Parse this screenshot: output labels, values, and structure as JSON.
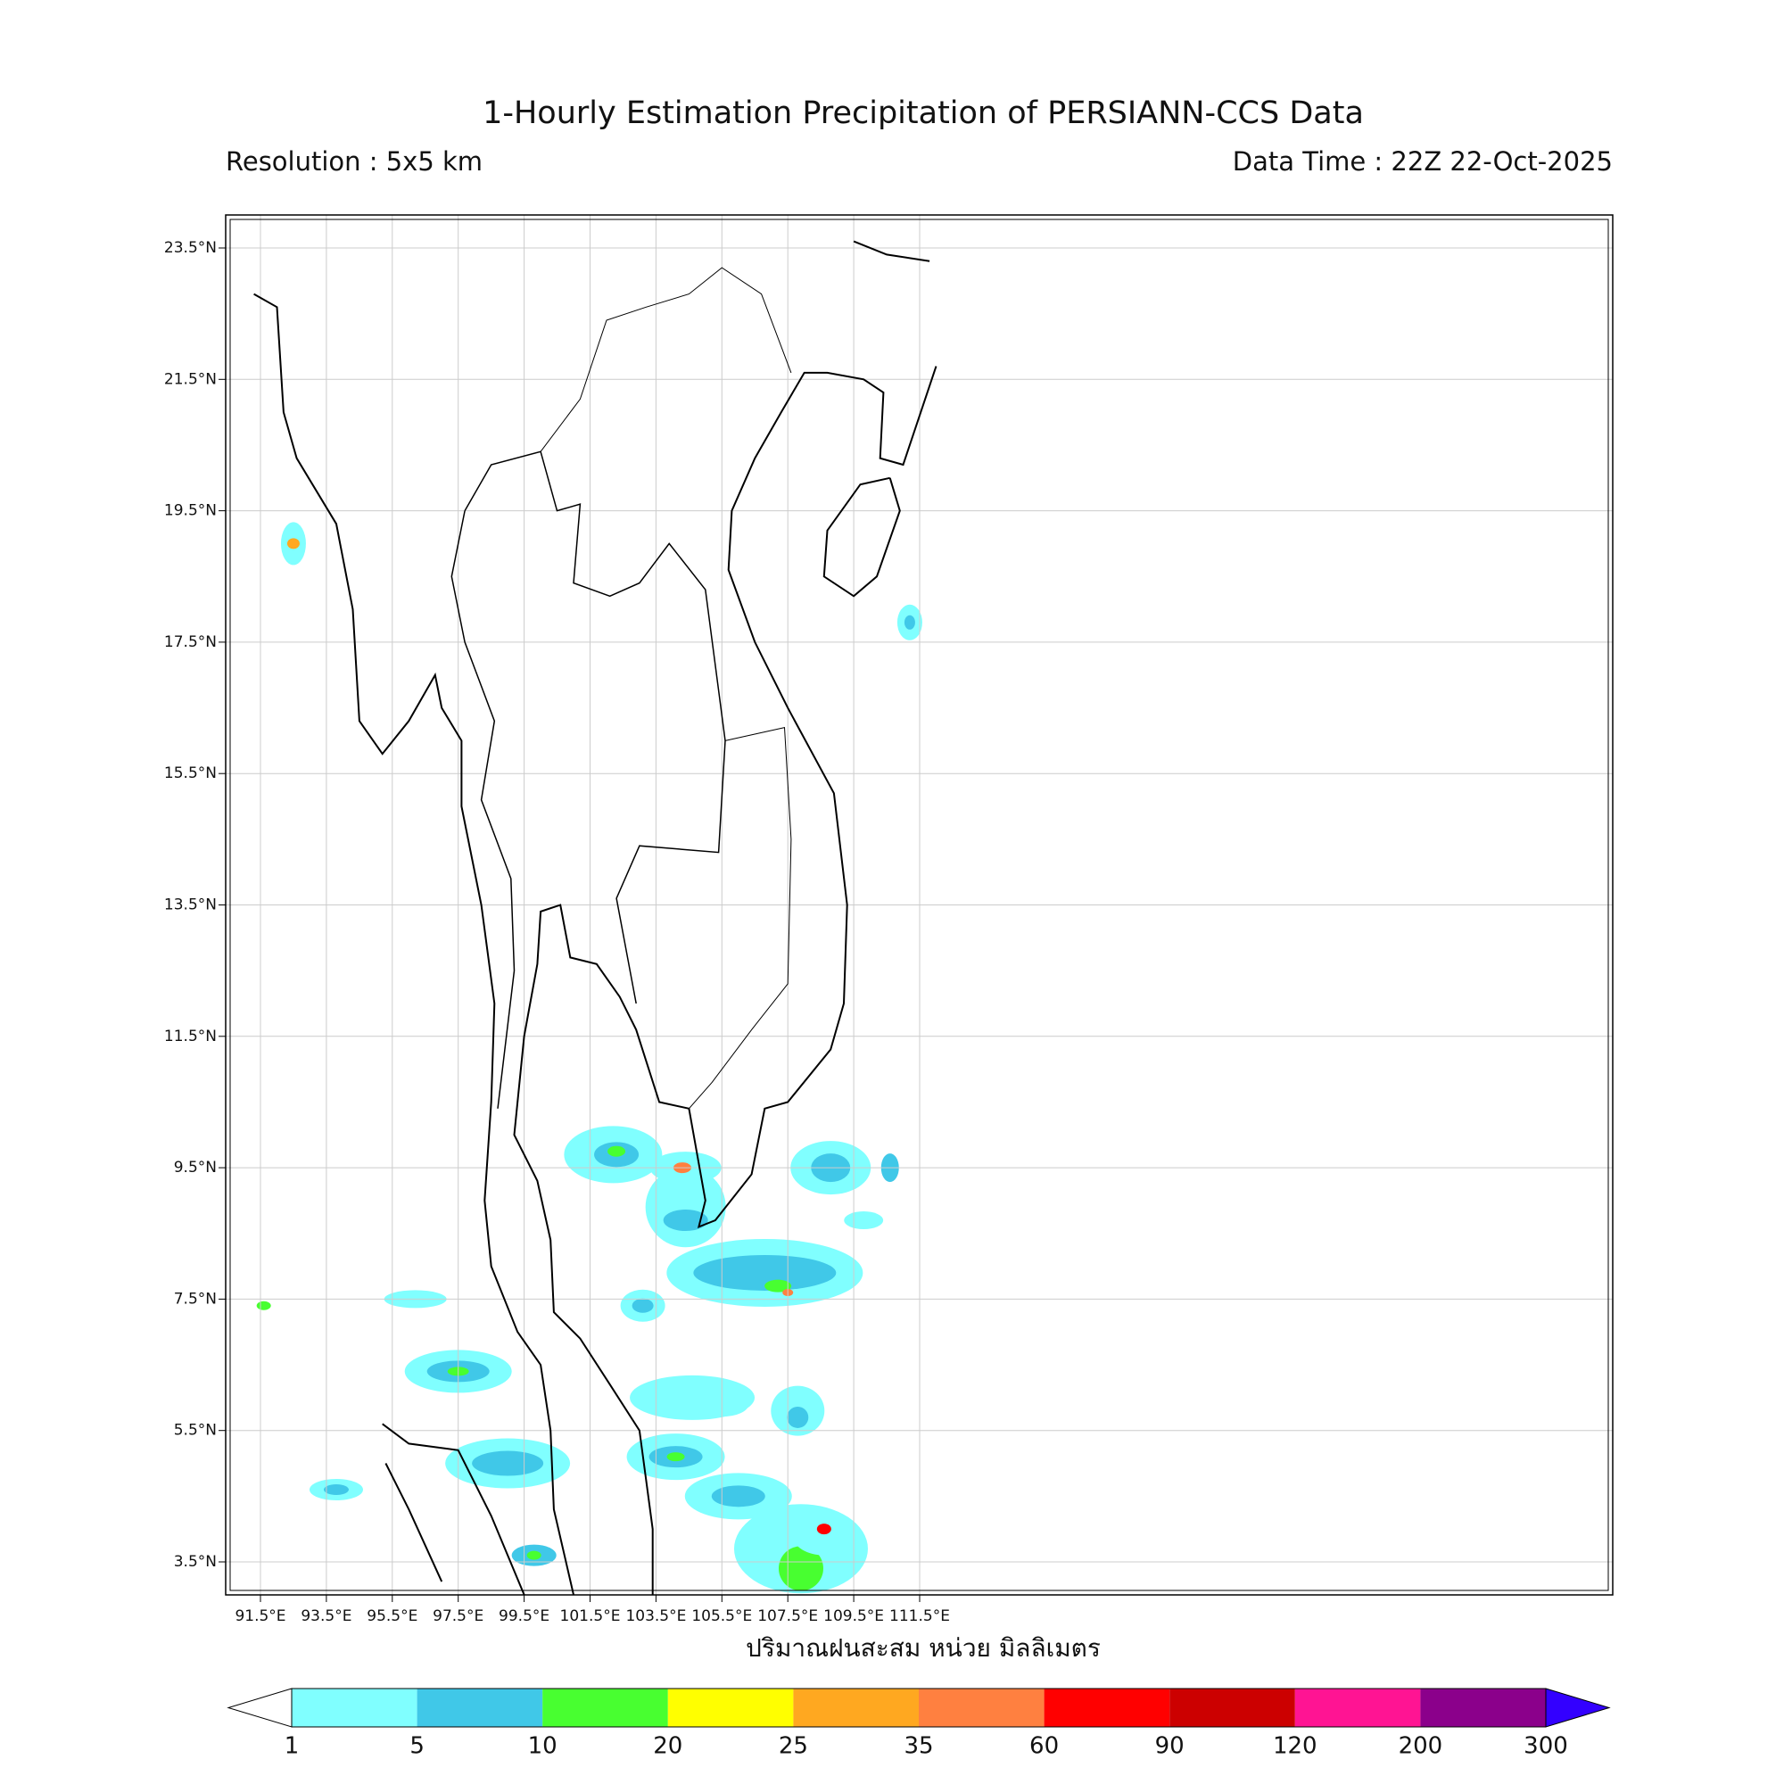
{
  "header": {
    "title": "1-Hourly Estimation Precipitation of PERSIANN-CCS Data",
    "resolution": "Resolution : 5x5 km",
    "data_time": "Data Time : 22Z 22-Oct-2025"
  },
  "map": {
    "lon_ticks": [
      {
        "value": 91.5,
        "label": "91.5°E"
      },
      {
        "value": 93.5,
        "label": "93.5°E"
      },
      {
        "value": 95.5,
        "label": "95.5°E"
      },
      {
        "value": 97.5,
        "label": "97.5°E"
      },
      {
        "value": 99.5,
        "label": "99.5°E"
      },
      {
        "value": 101.5,
        "label": "101.5°E"
      },
      {
        "value": 103.5,
        "label": "103.5°E"
      },
      {
        "value": 105.5,
        "label": "105.5°E"
      },
      {
        "value": 107.5,
        "label": "107.5°E"
      },
      {
        "value": 109.5,
        "label": "109.5°E"
      },
      {
        "value": 111.5,
        "label": "111.5°E"
      }
    ],
    "lat_ticks": [
      {
        "value": 23.5,
        "label": "23.5°N"
      },
      {
        "value": 21.5,
        "label": "21.5°N"
      },
      {
        "value": 19.5,
        "label": "19.5°N"
      },
      {
        "value": 17.5,
        "label": "17.5°N"
      },
      {
        "value": 15.5,
        "label": "15.5°N"
      },
      {
        "value": 13.5,
        "label": "13.5°N"
      },
      {
        "value": 11.5,
        "label": "11.5°N"
      },
      {
        "value": 9.5,
        "label": "9.5°N"
      },
      {
        "value": 7.5,
        "label": "7.5°N"
      },
      {
        "value": 5.5,
        "label": "5.5°N"
      },
      {
        "value": 3.5,
        "label": "3.5°N"
      }
    ],
    "grid": true,
    "xlabel": "ปริมาณฝนสะสม หน่วย มิลลิเมตร"
  },
  "colorbar": {
    "levels": [
      1,
      5,
      10,
      20,
      25,
      35,
      60,
      90,
      120,
      200,
      300
    ],
    "colors": [
      "#80ffff",
      "#40c8e8",
      "#48ff30",
      "#ffff00",
      "#ffa820",
      "#ff8040",
      "#ff0000",
      "#cc0000",
      "#ff1493",
      "#8b008b"
    ],
    "under_color": "#ffffff",
    "over_color": "#3300ff"
  }
}
